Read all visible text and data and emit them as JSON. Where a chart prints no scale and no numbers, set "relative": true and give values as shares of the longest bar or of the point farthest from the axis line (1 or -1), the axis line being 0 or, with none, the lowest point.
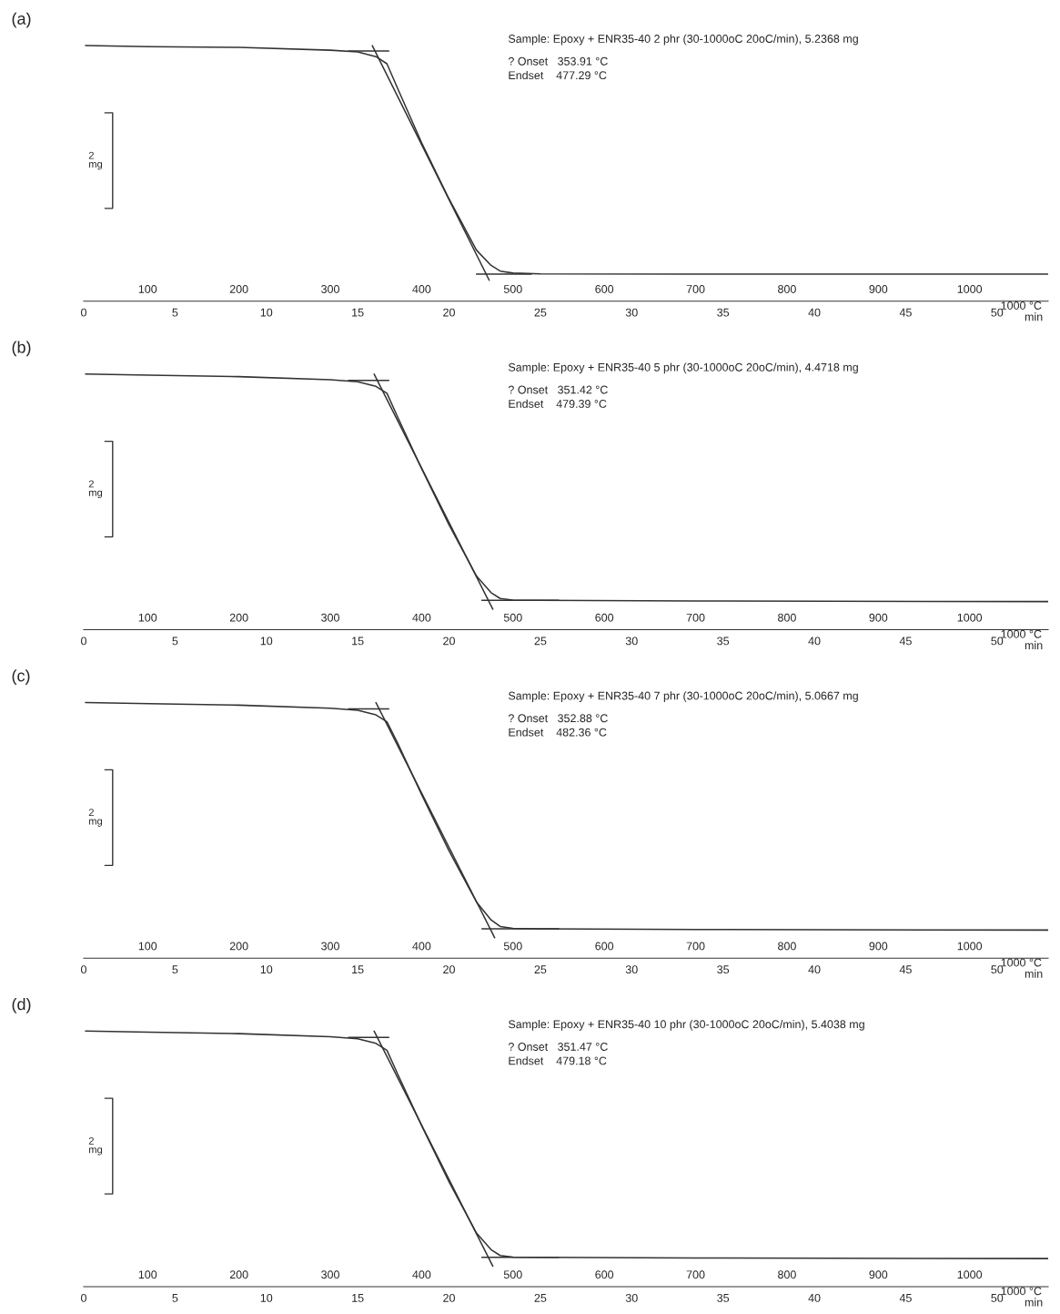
{
  "chart_data": [
    {
      "type": "line",
      "title": "(a)",
      "relative": true,
      "xlabel": "min",
      "x2label": "1000 °C",
      "xlim": [
        0,
        52.8
      ],
      "xticks": [
        0,
        5,
        10,
        15,
        20,
        25,
        30,
        35,
        40,
        45,
        50
      ],
      "x2lim": [
        30,
        1086
      ],
      "x2ticks": [
        100,
        200,
        300,
        400,
        500,
        600,
        700,
        800,
        900,
        1000
      ],
      "series": [
        {
          "color": "#333333",
          "x": [
            0.1,
            3.6,
            8.5,
            13.5,
            15.0,
            16.0,
            16.6,
            17.2,
            18.5,
            20.0,
            21.5,
            22.3,
            22.8,
            23.5,
            25.0,
            35.0,
            52.8
          ],
          "values": [
            1.0,
            0.996,
            0.993,
            0.982,
            0.975,
            0.957,
            0.929,
            0.83,
            0.62,
            0.4,
            0.2,
            0.14,
            0.118,
            0.11,
            0.107,
            0.106,
            0.106
          ]
        },
        {
          "color": "#333333",
          "x": [
            14.5,
            16.7
          ],
          "values": [
            0.979,
            0.979
          ]
        },
        {
          "color": "#333333",
          "x": [
            15.8,
            22.2
          ],
          "values": [
            1.0,
            0.082
          ]
        },
        {
          "color": "#333333",
          "x": [
            21.5,
            24.5
          ],
          "values": [
            0.106,
            0.106
          ]
        }
      ],
      "annotations": [
        "Sample: Epoxy + ENR35-40 2 phr (30-1000oC 20oC/min), 5.2368 mg",
        "? Onset   353.91 °C",
        "Endset    477.29 °C",
        "2\nmg"
      ]
    },
    {
      "type": "line",
      "title": "(b)",
      "relative": true,
      "xlabel": "min",
      "x2label": "1000 °C",
      "xlim": [
        0,
        52.8
      ],
      "xticks": [
        0,
        5,
        10,
        15,
        20,
        25,
        30,
        35,
        40,
        45,
        50
      ],
      "x2lim": [
        30,
        1086
      ],
      "x2ticks": [
        100,
        200,
        300,
        400,
        500,
        600,
        700,
        800,
        900,
        1000
      ],
      "series": [
        {
          "color": "#333333",
          "x": [
            0.1,
            3.6,
            8.5,
            13.5,
            15.0,
            16.0,
            16.6,
            17.2,
            18.5,
            20.0,
            21.5,
            22.3,
            22.8,
            23.5,
            25.0,
            35.0,
            52.8
          ],
          "values": [
            1.0,
            0.996,
            0.99,
            0.978,
            0.97,
            0.952,
            0.925,
            0.83,
            0.63,
            0.41,
            0.21,
            0.145,
            0.122,
            0.116,
            0.115,
            0.112,
            0.11
          ]
        },
        {
          "color": "#333333",
          "x": [
            14.5,
            16.7
          ],
          "values": [
            0.975,
            0.975
          ]
        },
        {
          "color": "#333333",
          "x": [
            15.9,
            22.4
          ],
          "values": [
            1.0,
            0.08
          ]
        },
        {
          "color": "#333333",
          "x": [
            21.8,
            26.0
          ],
          "values": [
            0.115,
            0.115
          ]
        }
      ],
      "annotations": [
        "Sample: Epoxy + ENR35-40 5 phr (30-1000oC 20oC/min), 4.4718 mg",
        "? Onset   351.42 °C",
        "Endset    479.39 °C",
        "2\nmg"
      ]
    },
    {
      "type": "line",
      "title": "(c)",
      "relative": true,
      "xlabel": "min",
      "x2label": "1000 °C",
      "xlim": [
        0,
        52.8
      ],
      "xticks": [
        0,
        5,
        10,
        15,
        20,
        25,
        30,
        35,
        40,
        45,
        50
      ],
      "x2lim": [
        30,
        1086
      ],
      "x2ticks": [
        100,
        200,
        300,
        400,
        500,
        600,
        700,
        800,
        900,
        1000
      ],
      "series": [
        {
          "color": "#333333",
          "x": [
            0.1,
            3.6,
            8.5,
            13.5,
            15.0,
            16.0,
            16.6,
            17.2,
            18.5,
            20.0,
            21.5,
            22.3,
            22.8,
            23.5,
            25.0,
            35.0,
            52.8
          ],
          "values": [
            1.0,
            0.996,
            0.99,
            0.978,
            0.97,
            0.952,
            0.925,
            0.84,
            0.64,
            0.42,
            0.22,
            0.15,
            0.124,
            0.117,
            0.115,
            0.112,
            0.11
          ]
        },
        {
          "color": "#333333",
          "x": [
            14.5,
            16.7
          ],
          "values": [
            0.975,
            0.975
          ]
        },
        {
          "color": "#333333",
          "x": [
            16.0,
            22.5
          ],
          "values": [
            1.0,
            0.08
          ]
        },
        {
          "color": "#333333",
          "x": [
            21.8,
            26.0
          ],
          "values": [
            0.115,
            0.115
          ]
        }
      ],
      "annotations": [
        "Sample: Epoxy + ENR35-40 7 phr (30-1000oC 20oC/min), 5.0667 mg",
        "? Onset   352.88 °C",
        "Endset    482.36 °C",
        "2\nmg"
      ]
    },
    {
      "type": "line",
      "title": "(d)",
      "relative": true,
      "xlabel": "min",
      "x2label": "1000 °C",
      "xlim": [
        0,
        52.8
      ],
      "xticks": [
        0,
        5,
        10,
        15,
        20,
        25,
        30,
        35,
        40,
        45,
        50
      ],
      "x2lim": [
        30,
        1086
      ],
      "x2ticks": [
        100,
        200,
        300,
        400,
        500,
        600,
        700,
        800,
        900,
        1000
      ],
      "series": [
        {
          "color": "#333333",
          "x": [
            0.1,
            3.6,
            8.5,
            13.5,
            15.0,
            16.0,
            16.6,
            17.2,
            18.5,
            20.0,
            21.5,
            22.3,
            22.8,
            23.5,
            25.0,
            35.0,
            52.8
          ],
          "values": [
            1.0,
            0.996,
            0.99,
            0.978,
            0.97,
            0.952,
            0.925,
            0.83,
            0.63,
            0.41,
            0.21,
            0.145,
            0.122,
            0.116,
            0.115,
            0.112,
            0.11
          ]
        },
        {
          "color": "#333333",
          "x": [
            14.5,
            16.7
          ],
          "values": [
            0.975,
            0.975
          ]
        },
        {
          "color": "#333333",
          "x": [
            15.9,
            22.4
          ],
          "values": [
            1.0,
            0.08
          ]
        },
        {
          "color": "#333333",
          "x": [
            21.8,
            26.0
          ],
          "values": [
            0.115,
            0.115
          ]
        }
      ],
      "annotations": [
        "Sample: Epoxy + ENR35-40 10 phr (30-1000oC 20oC/min), 5.4038 mg",
        "? Onset   351.47 °C",
        "Endset    479.18 °C",
        "2\nmg"
      ]
    }
  ]
}
